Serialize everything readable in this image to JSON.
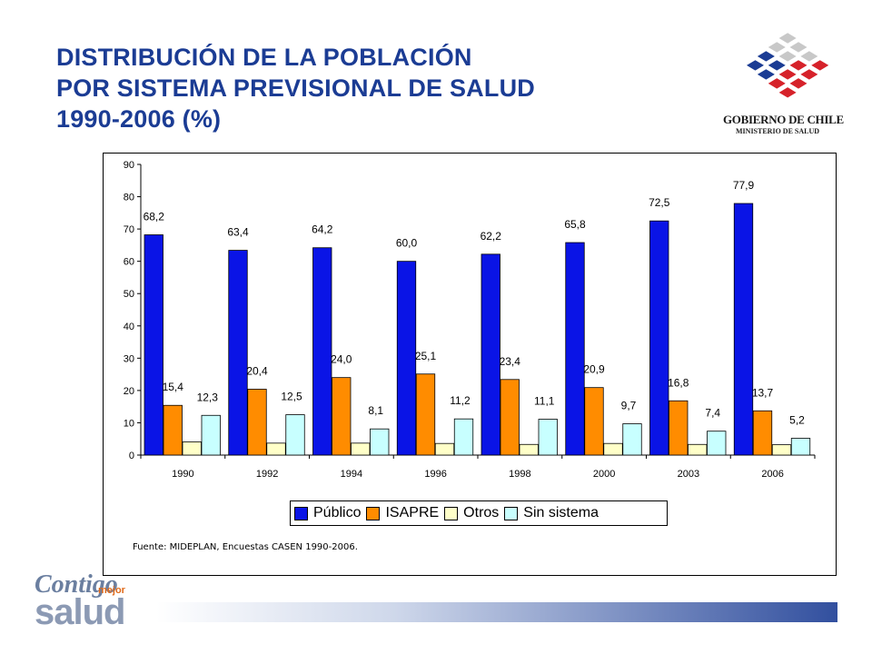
{
  "title": {
    "line1": "DISTRIBUCIÓN DE LA POBLACIÓN",
    "line2": "POR SISTEMA PREVISIONAL DE SALUD",
    "line3": "1990-2006 (%)"
  },
  "logo": {
    "line1": "GOBIERNO DE CHILE",
    "line2": "MINISTERIO DE SALUD",
    "colors": {
      "blue": "#1b3c94",
      "red": "#d6222a",
      "gray": "#c8c8c8"
    }
  },
  "brand": {
    "contigo": "Contigo",
    "mejor": "mejor",
    "salud": "salud"
  },
  "source": "Fuente: MIDEPLAN, Encuestas CASEN 1990-2006.",
  "legend": [
    {
      "label": "Público",
      "color": "#0a14e6"
    },
    {
      "label": "ISAPRE",
      "color": "#ff8c00"
    },
    {
      "label": "Otros",
      "color": "#ffffc8"
    },
    {
      "label": "Sin sistema",
      "color": "#c8ffff"
    }
  ],
  "chart_data": {
    "type": "bar",
    "categories": [
      "1990",
      "1992",
      "1994",
      "1996",
      "1998",
      "2000",
      "2003",
      "2006"
    ],
    "ylim": [
      0,
      90
    ],
    "yticks": [
      "0",
      "10",
      "20",
      "30",
      "40",
      "50",
      "60",
      "70",
      "80",
      "90"
    ],
    "grid": false,
    "legend_position": "bottom",
    "series": [
      {
        "name": "Público",
        "color": "#0a14e6",
        "values": [
          68.2,
          63.4,
          64.2,
          60.0,
          62.2,
          65.8,
          72.5,
          77.9
        ],
        "labels": [
          "68,2",
          "63,4",
          "64,2",
          "60,0",
          "62,2",
          "65,8",
          "72,5",
          "77,9"
        ]
      },
      {
        "name": "ISAPRE",
        "color": "#ff8c00",
        "values": [
          15.4,
          20.4,
          24.0,
          25.1,
          23.4,
          20.9,
          16.8,
          13.7
        ],
        "labels": [
          "15,4",
          "20,4",
          "24,0",
          "25,1",
          "23,4",
          "20,9",
          "16,8",
          "13,7"
        ]
      },
      {
        "name": "Otros",
        "color": "#ffffc8",
        "values": [
          4.1,
          3.7,
          3.7,
          3.6,
          3.3,
          3.6,
          3.3,
          3.2
        ],
        "labels": [
          "",
          "",
          "",
          "",
          "",
          "",
          "",
          ""
        ]
      },
      {
        "name": "Sin sistema",
        "color": "#c8ffff",
        "values": [
          12.3,
          12.5,
          8.1,
          11.2,
          11.1,
          9.7,
          7.4,
          5.2
        ],
        "labels": [
          "12,3",
          "12,5",
          "8,1",
          "11,2",
          "11,1",
          "9,7",
          "7,4",
          "5,2"
        ]
      }
    ]
  }
}
